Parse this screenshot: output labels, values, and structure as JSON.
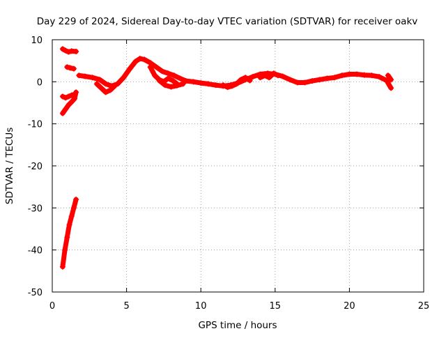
{
  "chart_data": {
    "type": "scatter",
    "title": "Day 229 of 2024, Sidereal Day-to-day VTEC variation (SDTVAR) for receiver oakv",
    "xlabel": "GPS time / hours",
    "ylabel": "SDTVAR / TECUs",
    "xlim": [
      0,
      25
    ],
    "ylim": [
      -50,
      10
    ],
    "xticks": [
      "0",
      "5",
      "10",
      "15",
      "20",
      "25"
    ],
    "yticks": [
      "10",
      "0",
      "-10",
      "-20",
      "-30",
      "-40",
      "-50"
    ],
    "grid": true,
    "marker": "+",
    "color": "#ff0000",
    "series": [
      {
        "name": "steep-drop",
        "x": [
          0.7,
          0.85,
          1.0,
          1.15,
          1.3,
          1.45,
          1.6
        ],
        "y": [
          -44,
          -40,
          -37,
          -34,
          -32,
          -30,
          -28
        ]
      },
      {
        "name": "early-top",
        "x": [
          0.7,
          0.9,
          1.1,
          1.3,
          1.6
        ],
        "y": [
          7.8,
          7.4,
          7.1,
          7.3,
          7.2
        ]
      },
      {
        "name": "early-mid",
        "x": [
          1.0,
          1.2,
          1.45
        ],
        "y": [
          3.5,
          3.3,
          3.1
        ]
      },
      {
        "name": "early-low",
        "x": [
          0.7,
          0.9,
          1.1,
          1.3,
          1.5,
          1.6
        ],
        "y": [
          -7.5,
          -6.5,
          -5.5,
          -4.8,
          -4.0,
          -2.5
        ]
      },
      {
        "name": "early-low-2",
        "x": [
          0.7,
          0.9,
          1.1,
          1.3,
          1.5
        ],
        "y": [
          -3.5,
          -3.8,
          -3.5,
          -3.2,
          -3.0
        ]
      },
      {
        "name": "main",
        "x": [
          1.8,
          2.2,
          2.7,
          3.2,
          3.6,
          4.0,
          4.4,
          4.8,
          5.2,
          5.6,
          5.9,
          6.2,
          6.6,
          7.0,
          7.4,
          7.8,
          8.2,
          8.6,
          9.0,
          9.5,
          10.0,
          10.5,
          11.0,
          11.5,
          12.0,
          12.5,
          13.0,
          13.5,
          14.0,
          14.5,
          15.0,
          15.5,
          16.0,
          16.5,
          17.0,
          17.5,
          18.0,
          18.5,
          19.0,
          19.5,
          20.0,
          20.5,
          21.0,
          21.5,
          22.0,
          22.5,
          22.8
        ],
        "y": [
          1.5,
          1.3,
          1.0,
          0.5,
          -0.5,
          -1.0,
          -0.5,
          1.0,
          3.0,
          4.8,
          5.5,
          5.3,
          4.5,
          3.5,
          2.5,
          2.0,
          1.5,
          0.8,
          0.2,
          0.0,
          -0.3,
          -0.5,
          -0.8,
          -1.0,
          -0.8,
          -0.3,
          0.5,
          1.2,
          1.8,
          2.0,
          1.8,
          1.3,
          0.5,
          -0.2,
          -0.2,
          0.2,
          0.5,
          0.8,
          1.0,
          1.5,
          1.8,
          1.8,
          1.6,
          1.5,
          1.2,
          0.3,
          -1.5
        ]
      },
      {
        "name": "dip-3-5",
        "x": [
          3.0,
          3.3,
          3.6,
          3.9,
          4.2
        ],
        "y": [
          -0.5,
          -1.5,
          -2.5,
          -2.0,
          -1.0
        ]
      },
      {
        "name": "loop-7",
        "x": [
          6.6,
          6.9,
          7.2,
          7.5,
          7.8,
          8.1,
          8.4
        ],
        "y": [
          3.5,
          1.5,
          0.5,
          0.0,
          0.8,
          0.3,
          -0.5
        ]
      },
      {
        "name": "loop-7-lower",
        "x": [
          7.2,
          7.6,
          8.0,
          8.4,
          8.8
        ],
        "y": [
          0.3,
          -0.8,
          -1.2,
          -0.9,
          -0.5
        ]
      },
      {
        "name": "loop-12-13",
        "x": [
          11.5,
          11.8,
          12.1,
          12.4,
          12.7,
          13.0,
          13.3
        ],
        "y": [
          -0.8,
          -1.3,
          -1.0,
          -0.5,
          0.5,
          1.0,
          0.3
        ]
      },
      {
        "name": "wiggle-14-15",
        "x": [
          14.0,
          14.3,
          14.6,
          14.9,
          15.2
        ],
        "y": [
          1.0,
          1.5,
          1.0,
          2.0,
          1.5
        ]
      },
      {
        "name": "end-branch",
        "x": [
          22.6,
          22.8
        ],
        "y": [
          1.5,
          0.5
        ]
      }
    ]
  }
}
